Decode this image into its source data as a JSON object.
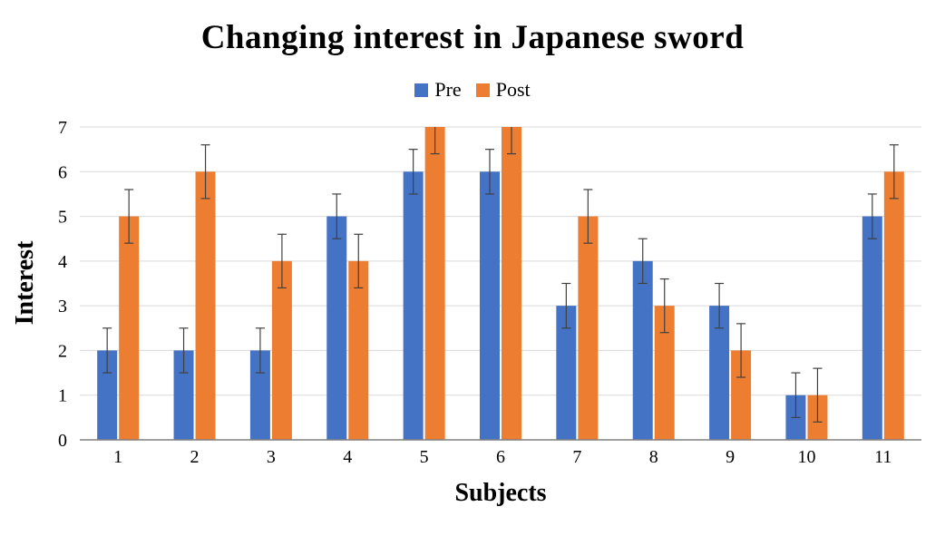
{
  "chart_data": {
    "type": "bar",
    "title": "Changing interest in Japanese sword",
    "xlabel": "Subjects",
    "ylabel": "Interest",
    "categories": [
      "1",
      "2",
      "3",
      "4",
      "5",
      "6",
      "7",
      "8",
      "9",
      "10",
      "11"
    ],
    "series": [
      {
        "name": "Pre",
        "color": "#4472C4",
        "values": [
          2,
          2,
          2,
          5,
          6,
          6,
          3,
          4,
          3,
          1,
          5
        ],
        "errors": [
          0.5,
          0.5,
          0.5,
          0.5,
          0.5,
          0.5,
          0.5,
          0.5,
          0.5,
          0.5,
          0.5
        ]
      },
      {
        "name": "Post",
        "color": "#ED7D31",
        "values": [
          5,
          6,
          4,
          4,
          7,
          7,
          5,
          3,
          2,
          1,
          6
        ],
        "errors": [
          0.6,
          0.6,
          0.6,
          0.6,
          0.6,
          0.6,
          0.6,
          0.6,
          0.6,
          0.6,
          0.6
        ]
      }
    ],
    "ylim": [
      0,
      7
    ],
    "ytick_step": 1,
    "grid": true,
    "legend_position": "top"
  },
  "colors": {
    "pre": "#4472C4",
    "post": "#ED7D31",
    "grid": "#D9D9D9",
    "axis": "#808080",
    "error": "#404040",
    "text": "#000000"
  }
}
